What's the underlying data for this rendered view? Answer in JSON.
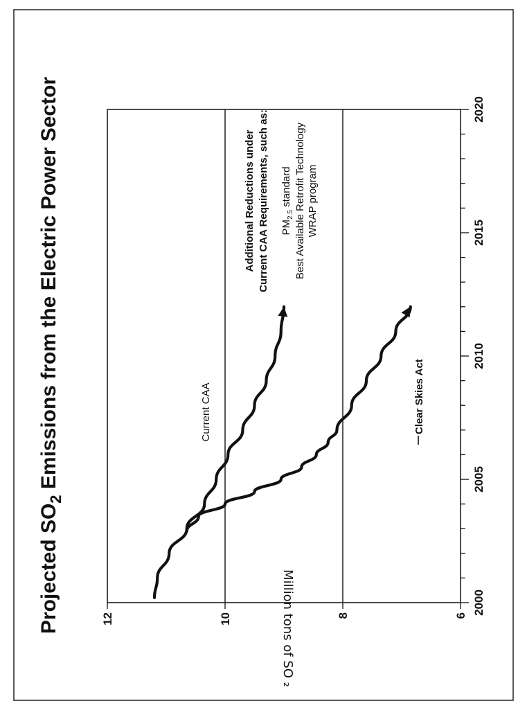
{
  "chart_data": {
    "type": "line",
    "title_parts": [
      "Projected SO",
      "2",
      " Emissions from the Electric Power Sector"
    ],
    "ylabel": "Million tons of SO ₂",
    "xlim": [
      2000,
      2020
    ],
    "ylim": [
      6,
      12
    ],
    "x_ticks": [
      2000,
      2005,
      2010,
      2015,
      2020
    ],
    "x_tick_labels": [
      "2000",
      "2005",
      "2010",
      "2015",
      "2020"
    ],
    "y_ticks": [
      6,
      8,
      10,
      12
    ],
    "y_tick_labels": [
      "6",
      "8",
      "10",
      "12"
    ],
    "reference_lines": [
      8,
      10
    ],
    "series": [
      {
        "name": "Current CAA",
        "x": [
          2000.2,
          2001.0,
          2002.0,
          2003.0,
          2004.0,
          2005.0,
          2006.0,
          2007.0,
          2008.0,
          2009.0,
          2010.0,
          2011.0,
          2012.0
        ],
        "y": [
          11.2,
          11.15,
          10.95,
          10.65,
          10.35,
          10.15,
          9.95,
          9.7,
          9.5,
          9.3,
          9.15,
          9.05,
          9.0
        ]
      },
      {
        "name": "Clear Skies Act",
        "x": [
          2002.9,
          2003.5,
          2004.0,
          2004.5,
          2005.0,
          2005.5,
          2006.0,
          2006.5,
          2007.0,
          2008.0,
          2009.0,
          2010.0,
          2011.0,
          2012.0
        ],
        "y": [
          10.65,
          10.45,
          10.0,
          9.5,
          9.05,
          8.7,
          8.45,
          8.25,
          8.1,
          7.85,
          7.6,
          7.35,
          7.1,
          6.85
        ]
      }
    ],
    "annotations": {
      "current_caa": "Current CAA",
      "clear_skies": "Clear Skies Act",
      "additional_lines": [
        "Additional Reductions under",
        "Current CAA Requirements, such as:"
      ],
      "pm_main": "PM",
      "pm_sub": "2.5",
      "pm_rest": " standard",
      "bart": "Best Available Retrofit Technology",
      "wrap": "WRAP program"
    },
    "line_color": "#111111",
    "grid": false,
    "legend": "none"
  }
}
